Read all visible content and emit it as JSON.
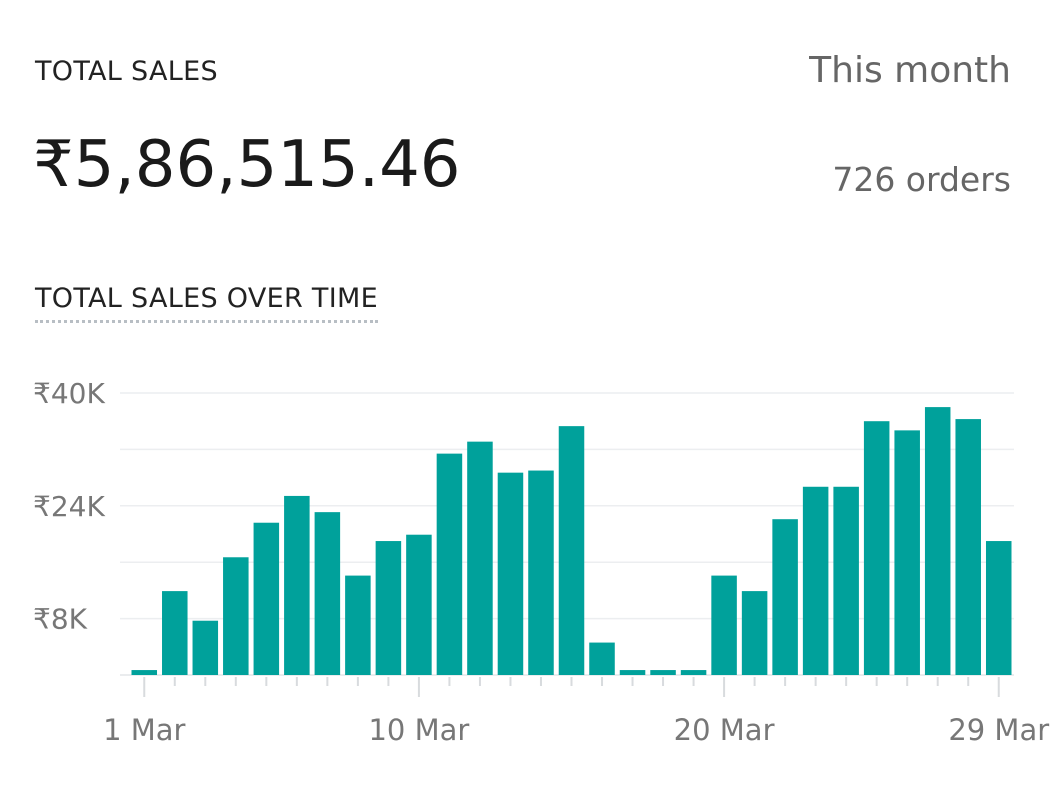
{
  "header": {
    "title": "TOTAL SALES",
    "period": "This month",
    "total": "₹5,86,515.46",
    "orders": "726 orders"
  },
  "chart_data": {
    "type": "bar",
    "title": "TOTAL SALES OVER TIME",
    "xlabel": "",
    "ylabel": "",
    "categories": [
      "1 Mar",
      "2 Mar",
      "3 Mar",
      "4 Mar",
      "5 Mar",
      "6 Mar",
      "7 Mar",
      "8 Mar",
      "9 Mar",
      "10 Mar",
      "11 Mar",
      "12 Mar",
      "13 Mar",
      "14 Mar",
      "15 Mar",
      "16 Mar",
      "17 Mar",
      "18 Mar",
      "19 Mar",
      "20 Mar",
      "21 Mar",
      "22 Mar",
      "23 Mar",
      "24 Mar",
      "25 Mar",
      "26 Mar",
      "27 Mar",
      "28 Mar",
      "29 Mar"
    ],
    "values": [
      700,
      11900,
      7700,
      16700,
      21600,
      25400,
      23100,
      14100,
      19000,
      19900,
      31400,
      33100,
      28700,
      29000,
      35300,
      4600,
      700,
      700,
      700,
      14100,
      11900,
      22100,
      26700,
      26700,
      36000,
      34700,
      38000,
      36300,
      19000
    ],
    "ylim": [
      0,
      40000
    ],
    "yticks": [
      {
        "value": 40000,
        "label": "₹40K"
      },
      {
        "value": 24000,
        "label": "₹24K"
      },
      {
        "value": 8000,
        "label": "₹8K"
      }
    ],
    "gridlines": [
      8000,
      16000,
      24000,
      32000,
      40000
    ],
    "xticklabels": [
      {
        "index": 0,
        "label": "1 Mar"
      },
      {
        "index": 9,
        "label": "10 Mar"
      },
      {
        "index": 19,
        "label": "20 Mar"
      },
      {
        "index": 28,
        "label": "29 Mar"
      }
    ],
    "grid": true,
    "bar_color": "#00a19b"
  }
}
